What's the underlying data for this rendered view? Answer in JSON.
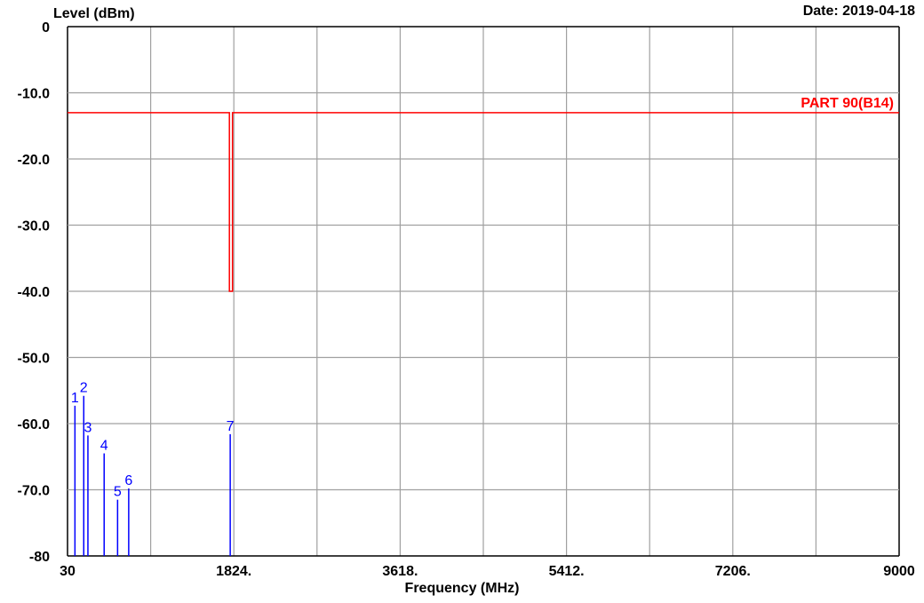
{
  "chart_data": {
    "type": "line",
    "date_label": "Date: 2019-04-18",
    "ylabel": "Level (dBm)",
    "xlabel": "Frequency (MHz)",
    "xlim": [
      30,
      9000
    ],
    "ylim": [
      -80,
      0
    ],
    "x_ticks": [
      30,
      1824,
      3618,
      5412,
      7206,
      9000
    ],
    "x_tick_labels": [
      "30",
      "1824.",
      "3618.",
      "5412.",
      "7206.",
      "9000"
    ],
    "y_ticks": [
      0,
      -10,
      -20,
      -30,
      -40,
      -50,
      -60,
      -70,
      -80
    ],
    "y_tick_labels": [
      "0",
      "-10.0",
      "-20.0",
      "-30.0",
      "-40.0",
      "-50.0",
      "-60.0",
      "-70.0",
      "-80"
    ],
    "grid": true,
    "limit_line": {
      "name": "PART 90(B14)",
      "color": "#ff0000",
      "points": [
        [
          30,
          -13
        ],
        [
          1776,
          -13
        ],
        [
          1776,
          -40
        ],
        [
          1810,
          -40
        ],
        [
          1810,
          -13
        ],
        [
          9000,
          -13
        ]
      ]
    },
    "markers": {
      "color": "#0000ff",
      "points": [
        {
          "label": "1",
          "x": 110,
          "y": -57.3
        },
        {
          "label": "2",
          "x": 205,
          "y": -55.8
        },
        {
          "label": "3",
          "x": 250,
          "y": -61.8
        },
        {
          "label": "4",
          "x": 425,
          "y": -64.5
        },
        {
          "label": "5",
          "x": 570,
          "y": -71.5
        },
        {
          "label": "6",
          "x": 690,
          "y": -69.8
        },
        {
          "label": "7",
          "x": 1785,
          "y": -61.6
        }
      ]
    }
  }
}
